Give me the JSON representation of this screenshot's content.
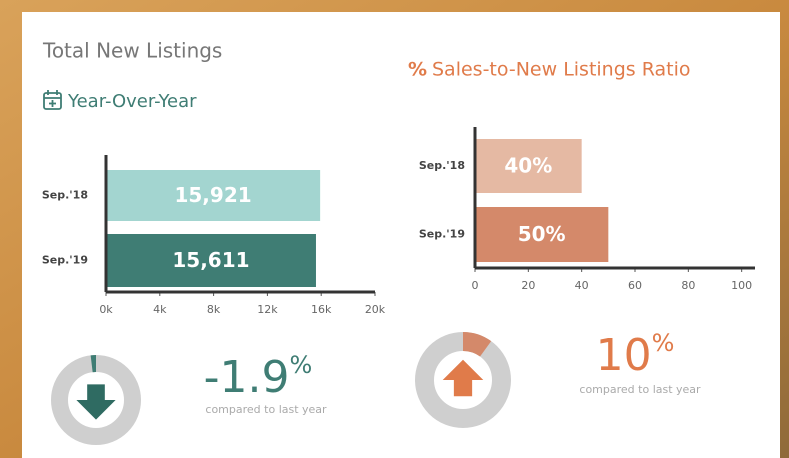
{
  "chart_data": [
    {
      "type": "bar",
      "orientation": "horizontal",
      "title": "Total New Listings",
      "subtitle": "Year-Over-Year",
      "categories": [
        "Sep.'18",
        "Sep.'19"
      ],
      "values": [
        15921,
        15611
      ],
      "value_labels": [
        "15,921",
        "15,611"
      ],
      "colors": [
        "#a3d5d0",
        "#3f7d74"
      ],
      "xlim": [
        0,
        20000
      ],
      "xticks": [
        {
          "value": 0,
          "label": "0k"
        },
        {
          "value": 4000,
          "label": "4k"
        },
        {
          "value": 8000,
          "label": "8k"
        },
        {
          "value": 12000,
          "label": "12k"
        },
        {
          "value": 16000,
          "label": "16k"
        },
        {
          "value": 20000,
          "label": "20k"
        }
      ],
      "change": {
        "value": -1.9,
        "unit": "%",
        "note": "compared to last year",
        "color": "#3f7d74"
      }
    },
    {
      "type": "bar",
      "orientation": "horizontal",
      "title_icon": "%",
      "title": "Sales-to-New Listings Ratio",
      "categories": [
        "Sep.'18",
        "Sep.'19"
      ],
      "values": [
        40,
        50
      ],
      "value_labels": [
        "40%",
        "50%"
      ],
      "colors": [
        "#e5b9a3",
        "#d4896a"
      ],
      "xlim": [
        0,
        105
      ],
      "xticks": [
        0,
        20,
        40,
        60,
        80,
        100
      ],
      "change": {
        "value": 10,
        "unit": "%",
        "note": "compared to last year",
        "color": "#e07b4a"
      }
    }
  ]
}
